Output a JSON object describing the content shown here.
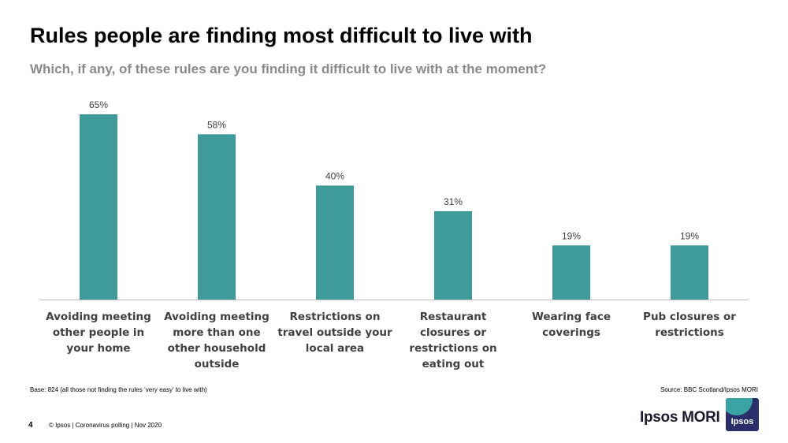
{
  "slide": {
    "title": "Rules people are finding most difficult to live with",
    "subtitle": "Which, if any, of these rules are you finding it difficult to live with at the moment?",
    "base_note": "Base: 824  (all those not finding the rules ‘very easy’ to live with)",
    "source_note": "Source: BBC Scotland/Ipsos MORI",
    "page_number": "4",
    "footer_text": "© Ipsos | Coronavirus polling | Nov 2020",
    "brand_text": "Ipsos MORI",
    "logo_text": "Ipsos"
  },
  "colors": {
    "bar": "#3f9a9a",
    "axis": "#bfbfbf",
    "label": "#404040"
  },
  "chart_data": {
    "type": "bar",
    "categories": [
      "Avoiding meeting other people in your home",
      "Avoiding meeting more than one other household outside",
      "Restrictions on travel outside your local area",
      "Restaurant closures or restrictions on eating out",
      "Wearing face coverings",
      "Pub closures or restrictions"
    ],
    "values": [
      65,
      58,
      40,
      31,
      19,
      19
    ],
    "data_labels": [
      "65%",
      "58%",
      "40%",
      "31%",
      "19%",
      "19%"
    ],
    "title": "Rules people are finding most difficult to live with",
    "subtitle": "Which, if any, of these rules are you finding it difficult to live with at the moment?",
    "xlabel": "",
    "ylabel": "",
    "ylim": [
      0,
      65
    ],
    "grid": false,
    "legend": "none"
  }
}
